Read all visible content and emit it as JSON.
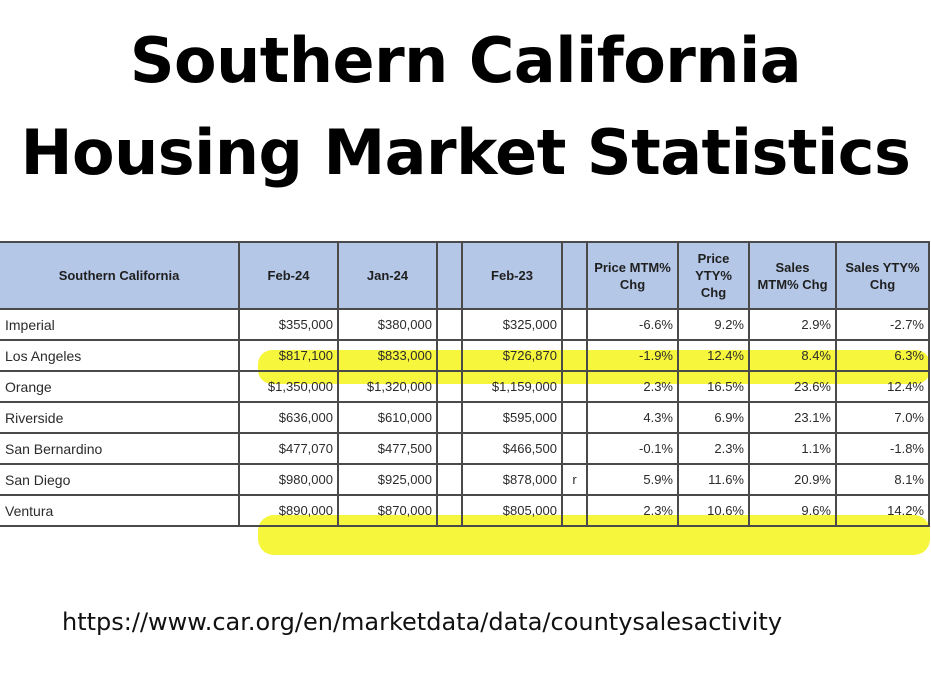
{
  "title": {
    "line1": "Southern California",
    "line2": "Housing Market Statistics"
  },
  "table": {
    "headers": [
      "Southern California",
      "Feb-24",
      "Jan-24",
      "",
      "Feb-23",
      "",
      "Price MTM% Chg",
      "Price YTY% Chg",
      "Sales MTM% Chg",
      "Sales YTY% Chg"
    ],
    "rows": [
      {
        "name": "Imperial",
        "feb24": "$355,000",
        "jan24": "$380,000",
        "feb23": "$325,000",
        "flag": "",
        "price_mtm": "-6.6%",
        "price_yty": "9.2%",
        "sales_mtm": "2.9%",
        "sales_yty": "-2.7%",
        "highlighted": false
      },
      {
        "name": "Los Angeles",
        "feb24": "$817,100",
        "jan24": "$833,000",
        "feb23": "$726,870",
        "flag": "",
        "price_mtm": "-1.9%",
        "price_yty": "12.4%",
        "sales_mtm": "8.4%",
        "sales_yty": "6.3%",
        "highlighted": true
      },
      {
        "name": "Orange",
        "feb24": "$1,350,000",
        "jan24": "$1,320,000",
        "feb23": "$1,159,000",
        "flag": "",
        "price_mtm": "2.3%",
        "price_yty": "16.5%",
        "sales_mtm": "23.6%",
        "sales_yty": "12.4%",
        "highlighted": false
      },
      {
        "name": "Riverside",
        "feb24": "$636,000",
        "jan24": "$610,000",
        "feb23": "$595,000",
        "flag": "",
        "price_mtm": "4.3%",
        "price_yty": "6.9%",
        "sales_mtm": "23.1%",
        "sales_yty": "7.0%",
        "highlighted": false
      },
      {
        "name": "San Bernardino",
        "feb24": "$477,070",
        "jan24": "$477,500",
        "feb23": "$466,500",
        "flag": "",
        "price_mtm": "-0.1%",
        "price_yty": "2.3%",
        "sales_mtm": "1.1%",
        "sales_yty": "-1.8%",
        "highlighted": false
      },
      {
        "name": "San Diego",
        "feb24": "$980,000",
        "jan24": "$925,000",
        "feb23": "$878,000",
        "flag": "r",
        "price_mtm": "5.9%",
        "price_yty": "11.6%",
        "sales_mtm": "20.9%",
        "sales_yty": "8.1%",
        "highlighted": false
      },
      {
        "name": "Ventura",
        "feb24": "$890,000",
        "jan24": "$870,000",
        "feb23": "$805,000",
        "flag": "",
        "price_mtm": "2.3%",
        "price_yty": "10.6%",
        "sales_mtm": "9.6%",
        "sales_yty": "14.2%",
        "highlighted": true
      }
    ]
  },
  "source_url": "https://www.car.org/en/marketdata/data/countysalesactivity",
  "colors": {
    "header_bg": "#b4c7e7",
    "highlight": "#f5f531",
    "border": "#4a4a4a"
  }
}
